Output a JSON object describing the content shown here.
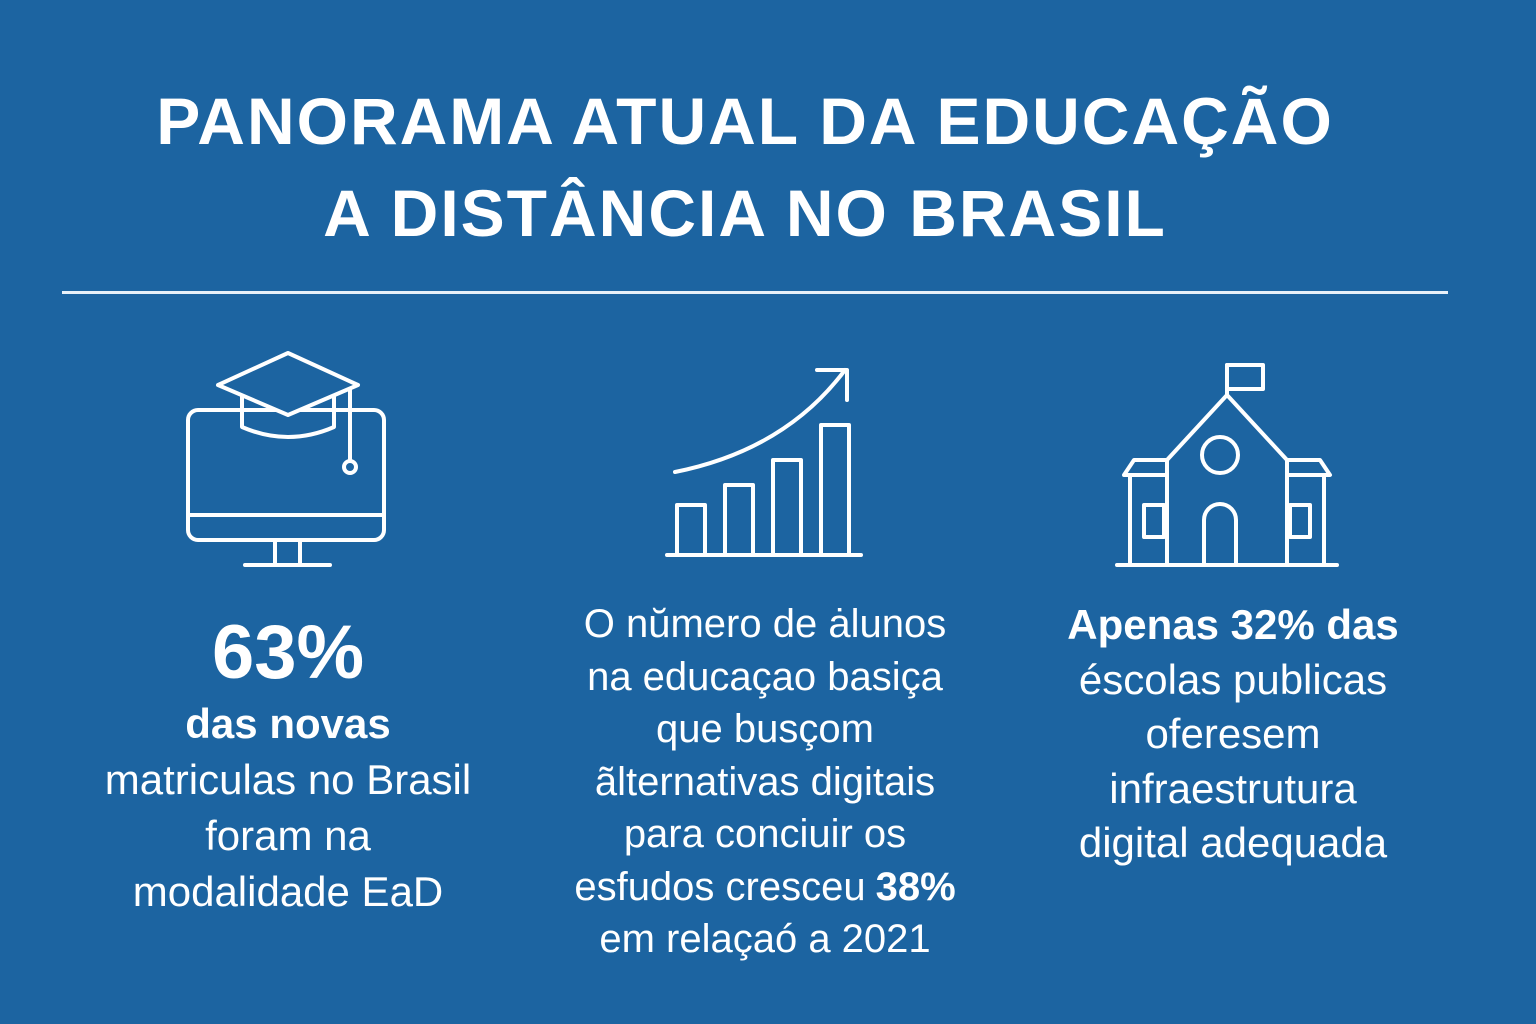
{
  "header": {
    "title_lines": [
      "PANORAMA ATUAL DA EDUCAÇÃO",
      "A DISTÂNCIA NO BRASIL"
    ]
  },
  "columns": [
    {
      "stat": "63%",
      "lines": [
        [
          {
            "text": "das novas",
            "bold": true
          }
        ],
        [
          {
            "text": "matriculas no Brasil",
            "bold": false
          }
        ],
        [
          {
            "text": "foram na",
            "bold": false
          }
        ],
        [
          {
            "text": "modalidade EaD",
            "bold": false
          }
        ]
      ]
    },
    {
      "lines": [
        [
          {
            "text": "O nŭmero de ȧlunos",
            "bold": false
          }
        ],
        [
          {
            "text": "na educaçao basiça",
            "bold": false
          }
        ],
        [
          {
            "text": "que busçom",
            "bold": false
          }
        ],
        [
          {
            "text": "ãlternativas digitais",
            "bold": false
          }
        ],
        [
          {
            "text": "para conciuir os",
            "bold": false
          }
        ],
        [
          {
            "text": "esfudos cresceu",
            "bold": false
          },
          {
            "text": "38%",
            "bold": true
          }
        ],
        [
          {
            "text": "em relaçaó a 2021",
            "bold": false
          }
        ]
      ]
    },
    {
      "lines": [
        [
          {
            "text": "Apenas 32% das",
            "bold": true
          }
        ],
        [
          {
            "text": "éscolas publicas",
            "bold": false
          }
        ],
        [
          {
            "text": "oferesem",
            "bold": false
          }
        ],
        [
          {
            "text": "infraestrutura",
            "bold": false
          }
        ],
        [
          {
            "text": "digital adequada",
            "bold": false
          }
        ]
      ]
    }
  ]
}
